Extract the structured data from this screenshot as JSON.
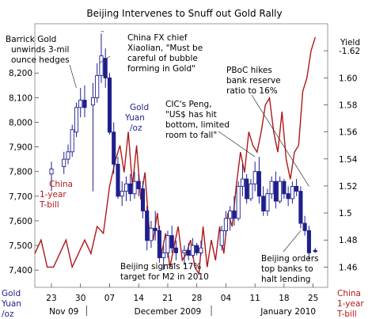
{
  "chart_data": {
    "type": "line",
    "title": "Beijing Intervenes to Snuff out Gold Rally",
    "left_axis": {
      "label_lines": [
        "Gold",
        "Yuan",
        "/oz"
      ],
      "range": [
        7330,
        8400
      ],
      "ticks": [
        "7,400",
        "7,500",
        "7,600",
        "7,700",
        "7,800",
        "7,900",
        "8,000",
        "8,100",
        "8,200"
      ],
      "tick_values": [
        7400,
        7500,
        7600,
        7700,
        7800,
        7900,
        8000,
        8100,
        8200
      ]
    },
    "right_axis": {
      "label": "Yield",
      "range": [
        1.445,
        1.64
      ],
      "ticks": [
        "1.46",
        "1.48",
        "1.5",
        "1.52",
        "1.54",
        "1.56",
        "1.58",
        "1.60",
        "-1.62"
      ],
      "tick_values": [
        1.46,
        1.48,
        1.5,
        1.52,
        1.54,
        1.56,
        1.58,
        1.6,
        1.62
      ],
      "label_lines_bottom": [
        "China",
        "1-year",
        "T-bill"
      ]
    },
    "x_axis": {
      "day_labels": [
        "23",
        "30",
        "07",
        "14",
        "21",
        "28",
        "04",
        "11",
        "18",
        "25"
      ],
      "day_positions": [
        0,
        7,
        14,
        21,
        28,
        35,
        42,
        49,
        56,
        63
      ],
      "month_labels": [
        "Nov 09",
        "December 2009",
        "January 2010"
      ],
      "month_positions": [
        3,
        28,
        57
      ],
      "month_separators": [
        8.5,
        38.5
      ],
      "range": [
        -4,
        66.5
      ]
    },
    "series": [
      {
        "name": "Gold Yuan /oz",
        "label_lines": [
          "Gold",
          "Yuan",
          "/oz"
        ],
        "kind": "candlestick",
        "color": "#1f1f8c",
        "candles": [
          {
            "x": 0,
            "o": 7790,
            "h": 7840,
            "l": 7720,
            "c": 7810
          },
          {
            "x": 3,
            "o": 7820,
            "h": 7880,
            "l": 7790,
            "c": 7850
          },
          {
            "x": 4,
            "o": 7850,
            "h": 7910,
            "l": 7830,
            "c": 7880
          },
          {
            "x": 5,
            "o": 7880,
            "h": 7990,
            "l": 7860,
            "c": 7970
          },
          {
            "x": 6,
            "o": 7960,
            "h": 8080,
            "l": 7940,
            "c": 8060
          },
          {
            "x": 7,
            "o": 8060,
            "h": 8140,
            "l": 8020,
            "c": 8090
          },
          {
            "x": 8,
            "o": 8090,
            "h": 8150,
            "l": 8020,
            "c": 8060
          },
          {
            "x": 10,
            "o": 8070,
            "h": 8160,
            "l": 7720,
            "c": 8100
          },
          {
            "x": 11,
            "o": 8100,
            "h": 8240,
            "l": 8080,
            "c": 8190
          },
          {
            "x": 12,
            "o": 8190,
            "h": 8360,
            "l": 8160,
            "c": 8270
          },
          {
            "x": 13,
            "o": 8260,
            "h": 8300,
            "l": 8140,
            "c": 8180
          },
          {
            "x": 14,
            "o": 8180,
            "h": 8200,
            "l": 7950,
            "c": 7960
          },
          {
            "x": 15,
            "o": 7960,
            "h": 8000,
            "l": 7790,
            "c": 7830
          },
          {
            "x": 16,
            "o": 7830,
            "h": 7860,
            "l": 7690,
            "c": 7700
          },
          {
            "x": 17,
            "o": 7700,
            "h": 7760,
            "l": 7660,
            "c": 7720
          },
          {
            "x": 18,
            "o": 7720,
            "h": 7780,
            "l": 7680,
            "c": 7750
          },
          {
            "x": 19,
            "o": 7750,
            "h": 7790,
            "l": 7680,
            "c": 7710
          },
          {
            "x": 20,
            "o": 7710,
            "h": 7800,
            "l": 7690,
            "c": 7760
          },
          {
            "x": 21,
            "o": 7760,
            "h": 7790,
            "l": 7700,
            "c": 7730
          },
          {
            "x": 22,
            "o": 7730,
            "h": 7760,
            "l": 7610,
            "c": 7640
          },
          {
            "x": 23,
            "o": 7640,
            "h": 7660,
            "l": 7480,
            "c": 7520
          },
          {
            "x": 24,
            "o": 7520,
            "h": 7600,
            "l": 7490,
            "c": 7570
          },
          {
            "x": 25,
            "o": 7570,
            "h": 7640,
            "l": 7520,
            "c": 7560
          },
          {
            "x": 26,
            "o": 7560,
            "h": 7580,
            "l": 7430,
            "c": 7450
          },
          {
            "x": 27,
            "o": 7450,
            "h": 7500,
            "l": 7400,
            "c": 7470
          },
          {
            "x": 28,
            "o": 7470,
            "h": 7560,
            "l": 7450,
            "c": 7540
          },
          {
            "x": 29,
            "o": 7540,
            "h": 7580,
            "l": 7470,
            "c": 7490
          },
          {
            "x": 30,
            "o": 7490,
            "h": 7520,
            "l": 7440,
            "c": 7470
          },
          {
            "x": 32,
            "o": 7470,
            "h": 7500,
            "l": 7420,
            "c": 7480
          },
          {
            "x": 33,
            "o": 7480,
            "h": 7510,
            "l": 7440,
            "c": 7460
          },
          {
            "x": 34,
            "o": 7460,
            "h": 7530,
            "l": 7450,
            "c": 7500
          },
          {
            "x": 35,
            "o": 7500,
            "h": 7510,
            "l": 7460,
            "c": 7470
          },
          {
            "x": 36,
            "o": 7470,
            "h": 7520,
            "l": 7460,
            "c": 7490
          },
          {
            "x": 41,
            "o": 7500,
            "h": 7580,
            "l": 7480,
            "c": 7560
          },
          {
            "x": 42,
            "o": 7560,
            "h": 7640,
            "l": 7540,
            "c": 7610
          },
          {
            "x": 43,
            "o": 7610,
            "h": 7660,
            "l": 7560,
            "c": 7640
          },
          {
            "x": 44,
            "o": 7640,
            "h": 7700,
            "l": 7580,
            "c": 7610
          },
          {
            "x": 45,
            "o": 7610,
            "h": 7760,
            "l": 7600,
            "c": 7740
          },
          {
            "x": 46,
            "o": 7740,
            "h": 7830,
            "l": 7700,
            "c": 7770
          },
          {
            "x": 47,
            "o": 7770,
            "h": 7790,
            "l": 7670,
            "c": 7690
          },
          {
            "x": 48,
            "o": 7690,
            "h": 7770,
            "l": 7680,
            "c": 7750
          },
          {
            "x": 49,
            "o": 7750,
            "h": 7840,
            "l": 7720,
            "c": 7800
          },
          {
            "x": 50,
            "o": 7800,
            "h": 7860,
            "l": 7670,
            "c": 7700
          },
          {
            "x": 51,
            "o": 7700,
            "h": 7740,
            "l": 7620,
            "c": 7640
          },
          {
            "x": 52,
            "o": 7640,
            "h": 7730,
            "l": 7620,
            "c": 7710
          },
          {
            "x": 53,
            "o": 7710,
            "h": 7780,
            "l": 7690,
            "c": 7760
          },
          {
            "x": 54,
            "o": 7760,
            "h": 7800,
            "l": 7650,
            "c": 7680
          },
          {
            "x": 55,
            "o": 7680,
            "h": 7780,
            "l": 7670,
            "c": 7760
          },
          {
            "x": 56,
            "o": 7760,
            "h": 7770,
            "l": 7690,
            "c": 7710
          },
          {
            "x": 57,
            "o": 7710,
            "h": 7740,
            "l": 7660,
            "c": 7690
          },
          {
            "x": 58,
            "o": 7690,
            "h": 7760,
            "l": 7670,
            "c": 7740
          },
          {
            "x": 59,
            "o": 7740,
            "h": 7770,
            "l": 7700,
            "c": 7720
          },
          {
            "x": 60,
            "o": 7720,
            "h": 7740,
            "l": 7570,
            "c": 7590
          },
          {
            "x": 61,
            "o": 7590,
            "h": 7620,
            "l": 7540,
            "c": 7560
          },
          {
            "x": 62,
            "o": 7560,
            "h": 7580,
            "l": 7440,
            "c": 7470
          },
          {
            "x": 63.5,
            "o": 7480,
            "h": 7490,
            "l": 7470,
            "c": 7475
          }
        ]
      },
      {
        "name": "China 1-year T-bill",
        "label_lines": [
          "China",
          "1-year",
          "T-bill"
        ],
        "kind": "line",
        "color": "#b01818",
        "points": [
          [
            -4,
            1.47
          ],
          [
            -2.5,
            1.48
          ],
          [
            -1,
            1.46
          ],
          [
            0.5,
            1.46
          ],
          [
            2,
            1.47
          ],
          [
            3.5,
            1.48
          ],
          [
            5,
            1.46
          ],
          [
            6.5,
            1.47
          ],
          [
            8,
            1.48
          ],
          [
            9.5,
            1.47
          ],
          [
            11,
            1.49
          ],
          [
            12.5,
            1.485
          ],
          [
            14,
            1.52
          ],
          [
            15.5,
            1.54
          ],
          [
            16.5,
            1.55
          ],
          [
            17.5,
            1.53
          ],
          [
            18.5,
            1.56
          ],
          [
            19.5,
            1.52
          ],
          [
            20.5,
            1.55
          ],
          [
            21.5,
            1.51
          ],
          [
            22.5,
            1.53
          ],
          [
            23.5,
            1.49
          ],
          [
            24.5,
            1.48
          ],
          [
            25.5,
            1.5
          ],
          [
            26.5,
            1.47
          ],
          [
            27.5,
            1.485
          ],
          [
            28.5,
            1.46
          ],
          [
            29.5,
            1.475
          ],
          [
            30.5,
            1.49
          ],
          [
            31.5,
            1.465
          ],
          [
            32.5,
            1.47
          ],
          [
            33.5,
            1.48
          ],
          [
            34.5,
            1.46
          ],
          [
            35.5,
            1.455
          ],
          [
            36.5,
            1.49
          ],
          [
            37.5,
            1.46
          ],
          [
            38.5,
            1.48
          ],
          [
            39.5,
            1.465
          ],
          [
            40.5,
            1.49
          ],
          [
            41.5,
            1.47
          ],
          [
            42.5,
            1.5
          ],
          [
            43.5,
            1.49
          ],
          [
            44.5,
            1.52
          ],
          [
            45.5,
            1.545
          ],
          [
            46.5,
            1.53
          ],
          [
            47.5,
            1.56
          ],
          [
            48.5,
            1.55
          ],
          [
            49.5,
            1.545
          ],
          [
            50.5,
            1.56
          ],
          [
            51.5,
            1.58
          ],
          [
            52.5,
            1.585
          ],
          [
            53.5,
            1.56
          ],
          [
            54.5,
            1.545
          ],
          [
            55.5,
            1.575
          ],
          [
            56.5,
            1.54
          ],
          [
            57.5,
            1.525
          ],
          [
            58.5,
            1.545
          ],
          [
            59.5,
            1.55
          ],
          [
            60.5,
            1.59
          ],
          [
            61.5,
            1.6
          ],
          [
            62.5,
            1.62
          ],
          [
            63.5,
            1.63
          ]
        ]
      }
    ],
    "annotations": [
      {
        "key": "a1",
        "lines": [
          "Barrick Gold",
          "unwinds 3-mil",
          "ounce hedges"
        ]
      },
      {
        "key": "a2",
        "lines": [
          "China FX chief",
          "Xiaolian, \"Must be",
          "careful of bubble",
          "forming in Gold\""
        ]
      },
      {
        "key": "a3",
        "lines": [
          "PBoC hikes",
          "bank reserve",
          "ratio to 16%"
        ]
      },
      {
        "key": "a4",
        "lines": [
          "CIC's Peng,",
          "\"US$ has hit",
          "bottom, limited",
          "room to fall\""
        ]
      },
      {
        "key": "a5",
        "lines": [
          "Beijing signals 17%",
          "target for M2 in 2010"
        ]
      },
      {
        "key": "a6",
        "lines": [
          "Beijing orders",
          "top banks to",
          "halt lending"
        ]
      }
    ]
  }
}
